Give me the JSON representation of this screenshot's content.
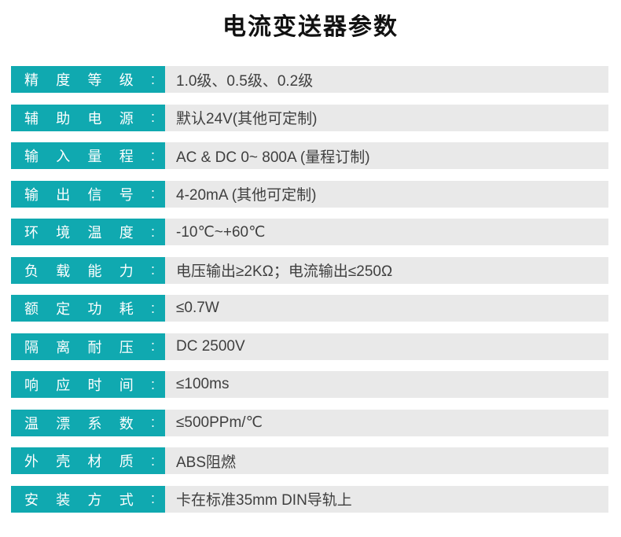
{
  "page": {
    "title": "电流变送器参数"
  },
  "theme": {
    "accent_teal": "#10A9B0",
    "value_bg": "#E9E9E9",
    "label_text_color": "#FFFFFF",
    "value_text_color": "#3F3F3F",
    "title_color": "#111111"
  },
  "table": {
    "rows": [
      {
        "label": "精 度 等 级 :",
        "value": "1.0级、0.5级、0.2级"
      },
      {
        "label": "辅 助 电 源 :",
        "value": "默认24V(其他可定制)"
      },
      {
        "label": "输 入 量 程 :",
        "value": "AC & DC  0~ 800A (量程订制)"
      },
      {
        "label": "输 出 信 号 :",
        "value": "4-20mA (其他可定制)"
      },
      {
        "label": "环 境 温 度 :",
        "value": "-10℃~+60℃"
      },
      {
        "label": "负 载 能 力 :",
        "value": "电压输出≥2KΩ；电流输出≤250Ω"
      },
      {
        "label": "额 定 功 耗 :",
        "value": "≤0.7W"
      },
      {
        "label": "隔 离 耐 压 :",
        "value": "DC 2500V"
      },
      {
        "label": "响 应 时 间 :",
        "value": "≤100ms"
      },
      {
        "label": "温 漂 系 数 :",
        "value": "≤500PPm/℃"
      },
      {
        "label": "外 壳 材 质 :",
        "value": "ABS阻燃"
      },
      {
        "label": "安 装 方 式 :",
        "value": "卡在标准35mm DIN导轨上"
      }
    ]
  }
}
